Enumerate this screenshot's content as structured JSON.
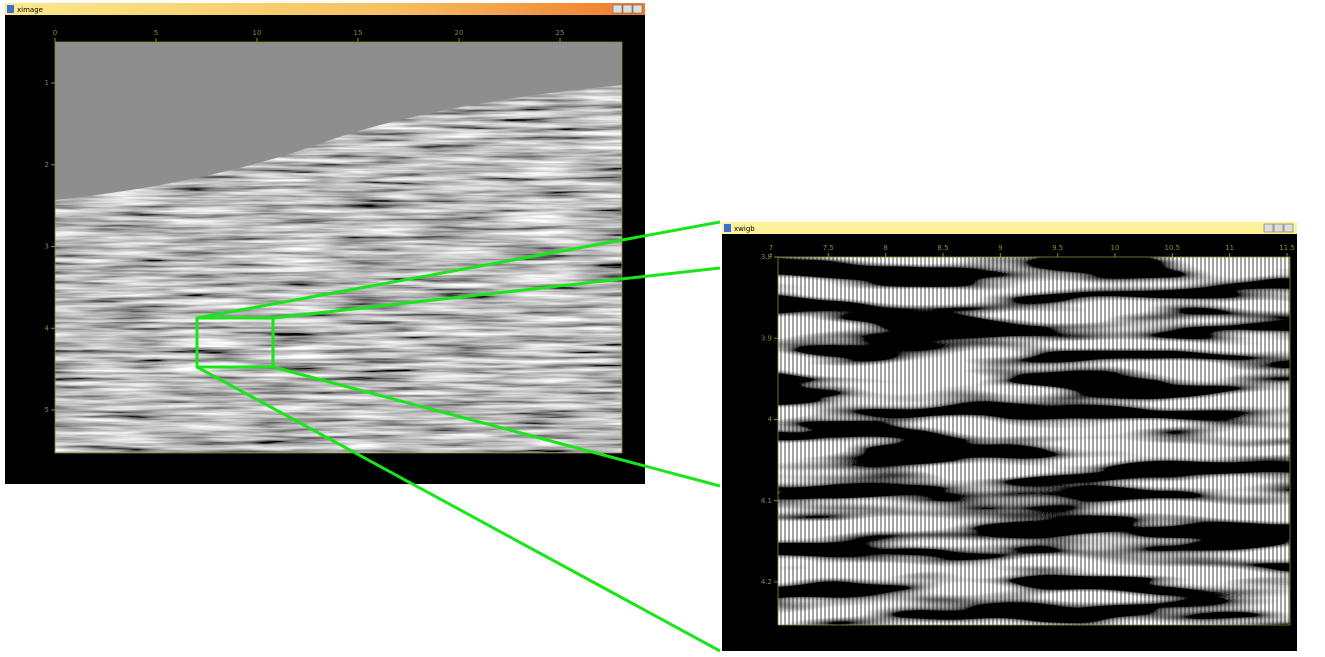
{
  "windows": [
    {
      "title": "ximage",
      "xticks": [
        0,
        5,
        10,
        15,
        20,
        25
      ],
      "yticks": [
        1,
        2,
        3,
        4,
        5
      ]
    },
    {
      "title": "xwigb",
      "xticks": [
        7,
        7.5,
        8,
        8.5,
        9,
        9.5,
        10,
        10.5,
        11,
        11.5
      ],
      "yticks": [
        3.8,
        3.9,
        4,
        4.1,
        4.2
      ]
    }
  ]
}
